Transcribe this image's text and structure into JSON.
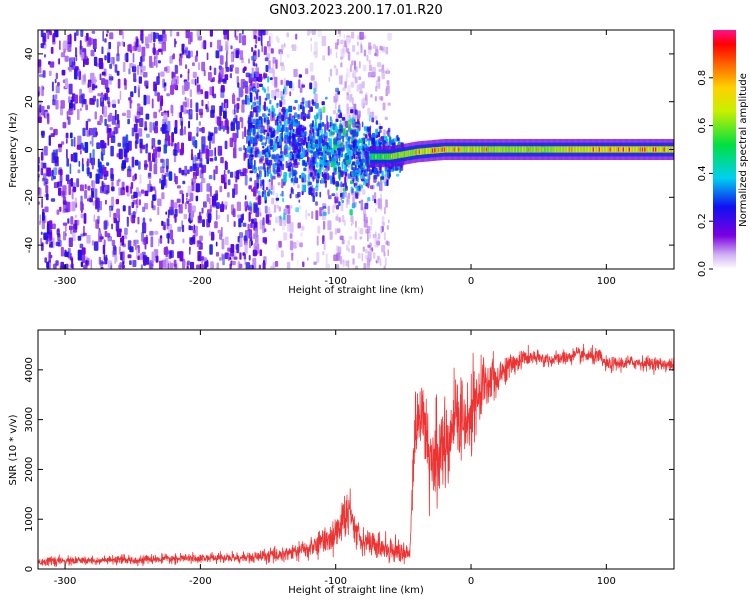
{
  "figure": {
    "title": "GN03.2023.200.17.01.R20"
  },
  "chart_data": [
    {
      "type": "heatmap",
      "xlabel": "Height of straight line (km)",
      "ylabel": "Frequency (Hz)",
      "xlim": [
        -320,
        150
      ],
      "ylim": [
        -50,
        50
      ],
      "xticks": [
        -300,
        -200,
        -100,
        0,
        100
      ],
      "yticks": [
        -40,
        -20,
        0,
        20,
        40
      ],
      "grid": false,
      "colorbar": {
        "label": "Normalized spectral amplitude",
        "range": [
          0.0,
          1.0
        ],
        "ticks": [
          "0.0",
          "0.2",
          "0.4",
          "0.6",
          "0.8"
        ],
        "colormap": "rainbow (white-violet-blue-cyan-green-yellow-orange-red-magenta)"
      },
      "description_regions": [
        {
          "x_range": [
            -320,
            -160
          ],
          "freq_range": [
            -50,
            50
          ],
          "amplitude": 0.1,
          "pattern": "noise"
        },
        {
          "x_range": [
            -160,
            -60
          ],
          "freq_range": [
            -10,
            10
          ],
          "amplitude": 0.3,
          "pattern": "noise narrowing"
        },
        {
          "x_range": [
            -60,
            150
          ],
          "freq_range": [
            -2,
            2
          ],
          "amplitude": 0.9,
          "pattern": "narrow band near 0 Hz"
        }
      ],
      "ridge": {
        "x": [
          -150,
          -120,
          -100,
          -80,
          -60,
          -40,
          -20,
          0,
          50,
          100,
          150
        ],
        "freq": [
          3,
          1,
          -2,
          -3,
          -3,
          -1,
          0,
          0,
          0,
          0,
          0
        ],
        "amplitude": [
          0.2,
          0.3,
          0.4,
          0.6,
          0.75,
          0.85,
          0.9,
          0.85,
          0.8,
          0.95,
          0.9
        ]
      }
    },
    {
      "type": "line",
      "xlabel": "Height of straight line (km)",
      "ylabel": "SNR (10 * v/v)",
      "xlim": [
        -320,
        150
      ],
      "ylim": [
        0,
        4800
      ],
      "xticks": [
        -300,
        -200,
        -100,
        0,
        100
      ],
      "yticks": [
        0,
        1000,
        2000,
        3000,
        4000
      ],
      "grid": false,
      "series": [
        {
          "color": "#ee3333",
          "x": [
            -320,
            -300,
            -250,
            -200,
            -160,
            -140,
            -120,
            -100,
            -95,
            -90,
            -85,
            -80,
            -70,
            -60,
            -50,
            -45,
            -42,
            -40,
            -35,
            -30,
            -25,
            -20,
            -15,
            -10,
            -5,
            0,
            5,
            10,
            20,
            30,
            40,
            60,
            80,
            95,
            100,
            120,
            150
          ],
          "y": [
            150,
            160,
            180,
            220,
            230,
            300,
            400,
            700,
            950,
            1150,
            800,
            600,
            450,
            400,
            350,
            300,
            2500,
            2900,
            3200,
            2000,
            2300,
            2500,
            2700,
            3200,
            2800,
            3000,
            3400,
            3800,
            3900,
            4100,
            4250,
            4200,
            4300,
            4250,
            4100,
            4150,
            4100
          ],
          "noise": [
            60,
            60,
            60,
            60,
            80,
            110,
            150,
            250,
            300,
            300,
            250,
            200,
            180,
            170,
            160,
            160,
            600,
            600,
            500,
            600,
            600,
            600,
            600,
            600,
            600,
            600,
            500,
            400,
            250,
            160,
            120,
            100,
            110,
            120,
            100,
            100,
            90
          ]
        }
      ]
    }
  ]
}
